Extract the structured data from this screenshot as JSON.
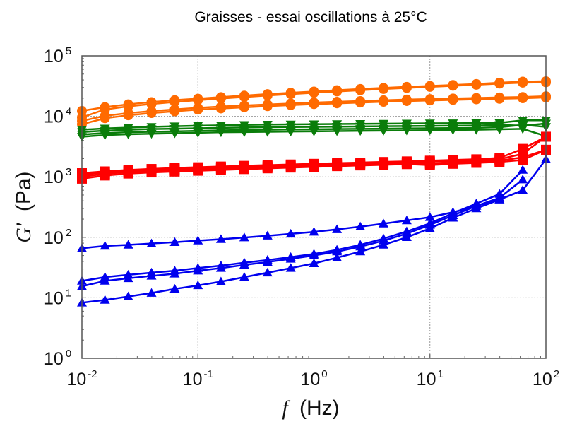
{
  "chart_data": {
    "type": "line",
    "title": "Graisses - essai oscillations à 25°C",
    "xlabel_symbol": "f",
    "xlabel_unit": "(Hz)",
    "ylabel_symbol": "G'",
    "ylabel_unit": "(Pa)",
    "xscale": "log",
    "yscale": "log",
    "xlim": [
      0.01,
      100
    ],
    "ylim": [
      1,
      100000
    ],
    "grid": true,
    "legend": "none",
    "x_ticks": [
      {
        "base": "10",
        "exp": "-2",
        "value": 0.01
      },
      {
        "base": "10",
        "exp": "-1",
        "value": 0.1
      },
      {
        "base": "10",
        "exp": "0",
        "value": 1
      },
      {
        "base": "10",
        "exp": "1",
        "value": 10
      },
      {
        "base": "10",
        "exp": "2",
        "value": 100
      }
    ],
    "y_ticks": [
      {
        "base": "10",
        "exp": "0",
        "value": 1
      },
      {
        "base": "10",
        "exp": "1",
        "value": 10
      },
      {
        "base": "10",
        "exp": "2",
        "value": 100
      },
      {
        "base": "10",
        "exp": "3",
        "value": 1000
      },
      {
        "base": "10",
        "exp": "4",
        "value": 10000
      },
      {
        "base": "10",
        "exp": "5",
        "value": 100000
      }
    ],
    "x": [
      0.01,
      0.0158,
      0.0251,
      0.0398,
      0.0631,
      0.1,
      0.158,
      0.251,
      0.398,
      0.631,
      1,
      1.58,
      2.51,
      3.98,
      6.31,
      10,
      15.8,
      25.1,
      39.8,
      63.1,
      100
    ],
    "series": [
      {
        "name": "orange-1",
        "group": "orange",
        "color": "#ff6a00",
        "marker": "circle",
        "values": [
          12300,
          14200,
          15800,
          17200,
          18500,
          19600,
          20800,
          22000,
          23300,
          24500,
          25700,
          27000,
          28300,
          29500,
          30700,
          31800,
          33000,
          34200,
          36000,
          37500,
          38000
        ]
      },
      {
        "name": "orange-2",
        "group": "orange",
        "color": "#ff6a00",
        "marker": "circle",
        "values": [
          9600,
          13000,
          14600,
          16000,
          17300,
          18500,
          19700,
          20900,
          22100,
          23300,
          24500,
          25800,
          27000,
          28300,
          29500,
          30700,
          32000,
          33300,
          34800,
          36000,
          36500
        ]
      },
      {
        "name": "orange-3",
        "group": "orange",
        "color": "#ff6a00",
        "marker": "circle",
        "values": [
          8400,
          10200,
          11300,
          12200,
          13000,
          13800,
          14500,
          15100,
          15700,
          16300,
          16900,
          17400,
          17900,
          18400,
          18900,
          19300,
          19700,
          20100,
          20500,
          20900,
          21500
        ]
      },
      {
        "name": "orange-4",
        "group": "orange",
        "color": "#ff6a00",
        "marker": "circle",
        "values": [
          7400,
          9300,
          10400,
          11300,
          12100,
          12900,
          13500,
          14100,
          14700,
          15300,
          15900,
          16400,
          16900,
          17400,
          17900,
          18300,
          18700,
          19100,
          19500,
          19900,
          20500
        ]
      },
      {
        "name": "green-1",
        "group": "green",
        "color": "#0a7d0a",
        "marker": "triangle-down",
        "values": [
          6000,
          6300,
          6500,
          6700,
          6850,
          7000,
          7100,
          7200,
          7300,
          7350,
          7400,
          7450,
          7500,
          7550,
          7600,
          7650,
          7700,
          7750,
          7800,
          8600,
          8600
        ]
      },
      {
        "name": "green-2",
        "group": "green",
        "color": "#0a7d0a",
        "marker": "triangle-down",
        "values": [
          5500,
          5800,
          6000,
          6150,
          6250,
          6350,
          6450,
          6550,
          6600,
          6650,
          6700,
          6750,
          6800,
          6850,
          6900,
          6950,
          7000,
          7050,
          7200,
          7000,
          7600
        ]
      },
      {
        "name": "green-3",
        "group": "green",
        "color": "#0a7d0a",
        "marker": "triangle-down",
        "values": [
          5000,
          5300,
          5450,
          5550,
          5650,
          5750,
          5850,
          5950,
          6000,
          6050,
          6100,
          6150,
          6200,
          6250,
          6300,
          6350,
          6400,
          6450,
          6600,
          7200,
          6700
        ]
      },
      {
        "name": "green-4",
        "group": "green",
        "color": "#0a7d0a",
        "marker": "triangle-down",
        "values": [
          4600,
          4900,
          5050,
          5150,
          5250,
          5350,
          5450,
          5500,
          5550,
          5600,
          5650,
          5700,
          5750,
          5800,
          5850,
          5900,
          5950,
          6000,
          6100,
          6200,
          4700
        ]
      },
      {
        "name": "red-1",
        "group": "red",
        "color": "#ff0000",
        "marker": "square",
        "values": [
          1150,
          1230,
          1300,
          1350,
          1400,
          1440,
          1480,
          1520,
          1560,
          1600,
          1640,
          1680,
          1720,
          1760,
          1800,
          1850,
          1900,
          1950,
          2050,
          2900,
          4600
        ]
      },
      {
        "name": "red-2",
        "group": "red",
        "color": "#ff0000",
        "marker": "square",
        "values": [
          1080,
          1180,
          1250,
          1300,
          1340,
          1380,
          1420,
          1460,
          1500,
          1540,
          1580,
          1620,
          1660,
          1700,
          1740,
          1780,
          1820,
          1870,
          1950,
          2400,
          4600
        ]
      },
      {
        "name": "red-3",
        "group": "red",
        "color": "#ff0000",
        "marker": "square",
        "values": [
          1000,
          1120,
          1200,
          1250,
          1290,
          1330,
          1370,
          1410,
          1450,
          1490,
          1530,
          1570,
          1610,
          1650,
          1690,
          1650,
          1720,
          1780,
          1850,
          2100,
          2800
        ]
      },
      {
        "name": "red-4",
        "group": "red",
        "color": "#ff0000",
        "marker": "square",
        "values": [
          930,
          1050,
          1130,
          1180,
          1220,
          1260,
          1300,
          1340,
          1380,
          1420,
          1460,
          1500,
          1540,
          1580,
          1620,
          1560,
          1640,
          1700,
          1760,
          1900,
          2800
        ]
      },
      {
        "name": "blue-1",
        "group": "blue",
        "color": "#0000ee",
        "marker": "triangle-up",
        "values": [
          66,
          72,
          75,
          79,
          83,
          88,
          93,
          99,
          106,
          114,
          123,
          135,
          150,
          168,
          190,
          215,
          260,
          330,
          420,
          600,
          1950
        ]
      },
      {
        "name": "blue-2",
        "group": "blue",
        "color": "#0000ee",
        "marker": "triangle-up",
        "values": [
          19,
          22,
          24,
          26,
          28,
          31,
          34,
          38,
          42,
          47,
          53,
          62,
          75,
          95,
          125,
          170,
          250,
          360,
          520,
          1300,
          null
        ]
      },
      {
        "name": "blue-3",
        "group": "blue",
        "color": "#0000ee",
        "marker": "triangle-up",
        "values": [
          15.5,
          19,
          21,
          23,
          25,
          28,
          31,
          35,
          39,
          44,
          50,
          58,
          70,
          88,
          115,
          160,
          230,
          330,
          450,
          900,
          null
        ]
      },
      {
        "name": "blue-4",
        "group": "blue",
        "color": "#0000ee",
        "marker": "triangle-up",
        "values": [
          8.3,
          9.2,
          10.5,
          12,
          14,
          16,
          18.5,
          22,
          26,
          31,
          37,
          46,
          58,
          75,
          100,
          140,
          210,
          300,
          420,
          600,
          null
        ]
      }
    ]
  }
}
